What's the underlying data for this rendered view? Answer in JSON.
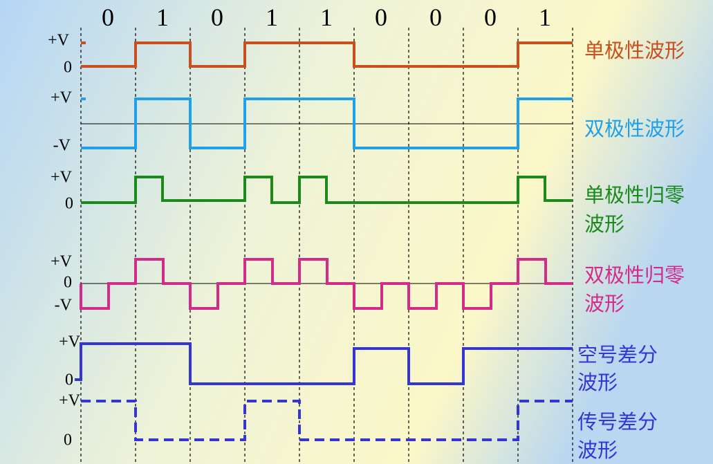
{
  "bits": [
    "0",
    "1",
    "0",
    "1",
    "1",
    "0",
    "0",
    "0",
    "1"
  ],
  "waveforms": [
    {
      "label": [
        "单极性波形"
      ],
      "levels": [
        "+V",
        "0"
      ]
    },
    {
      "label": [
        "双极性波形"
      ],
      "levels": [
        "+V",
        "-V"
      ]
    },
    {
      "label": [
        "单极性归零",
        "波形"
      ],
      "levels": [
        "+V",
        "0"
      ]
    },
    {
      "label": [
        "双极性归零",
        "波形"
      ],
      "levels": [
        "+V",
        "0",
        "-V"
      ]
    },
    {
      "label": [
        "空号差分",
        "波形"
      ],
      "levels": [
        "+V",
        "0"
      ]
    },
    {
      "label": [
        "传号差分",
        "波形"
      ],
      "levels": [
        "+V",
        "0"
      ]
    }
  ]
}
